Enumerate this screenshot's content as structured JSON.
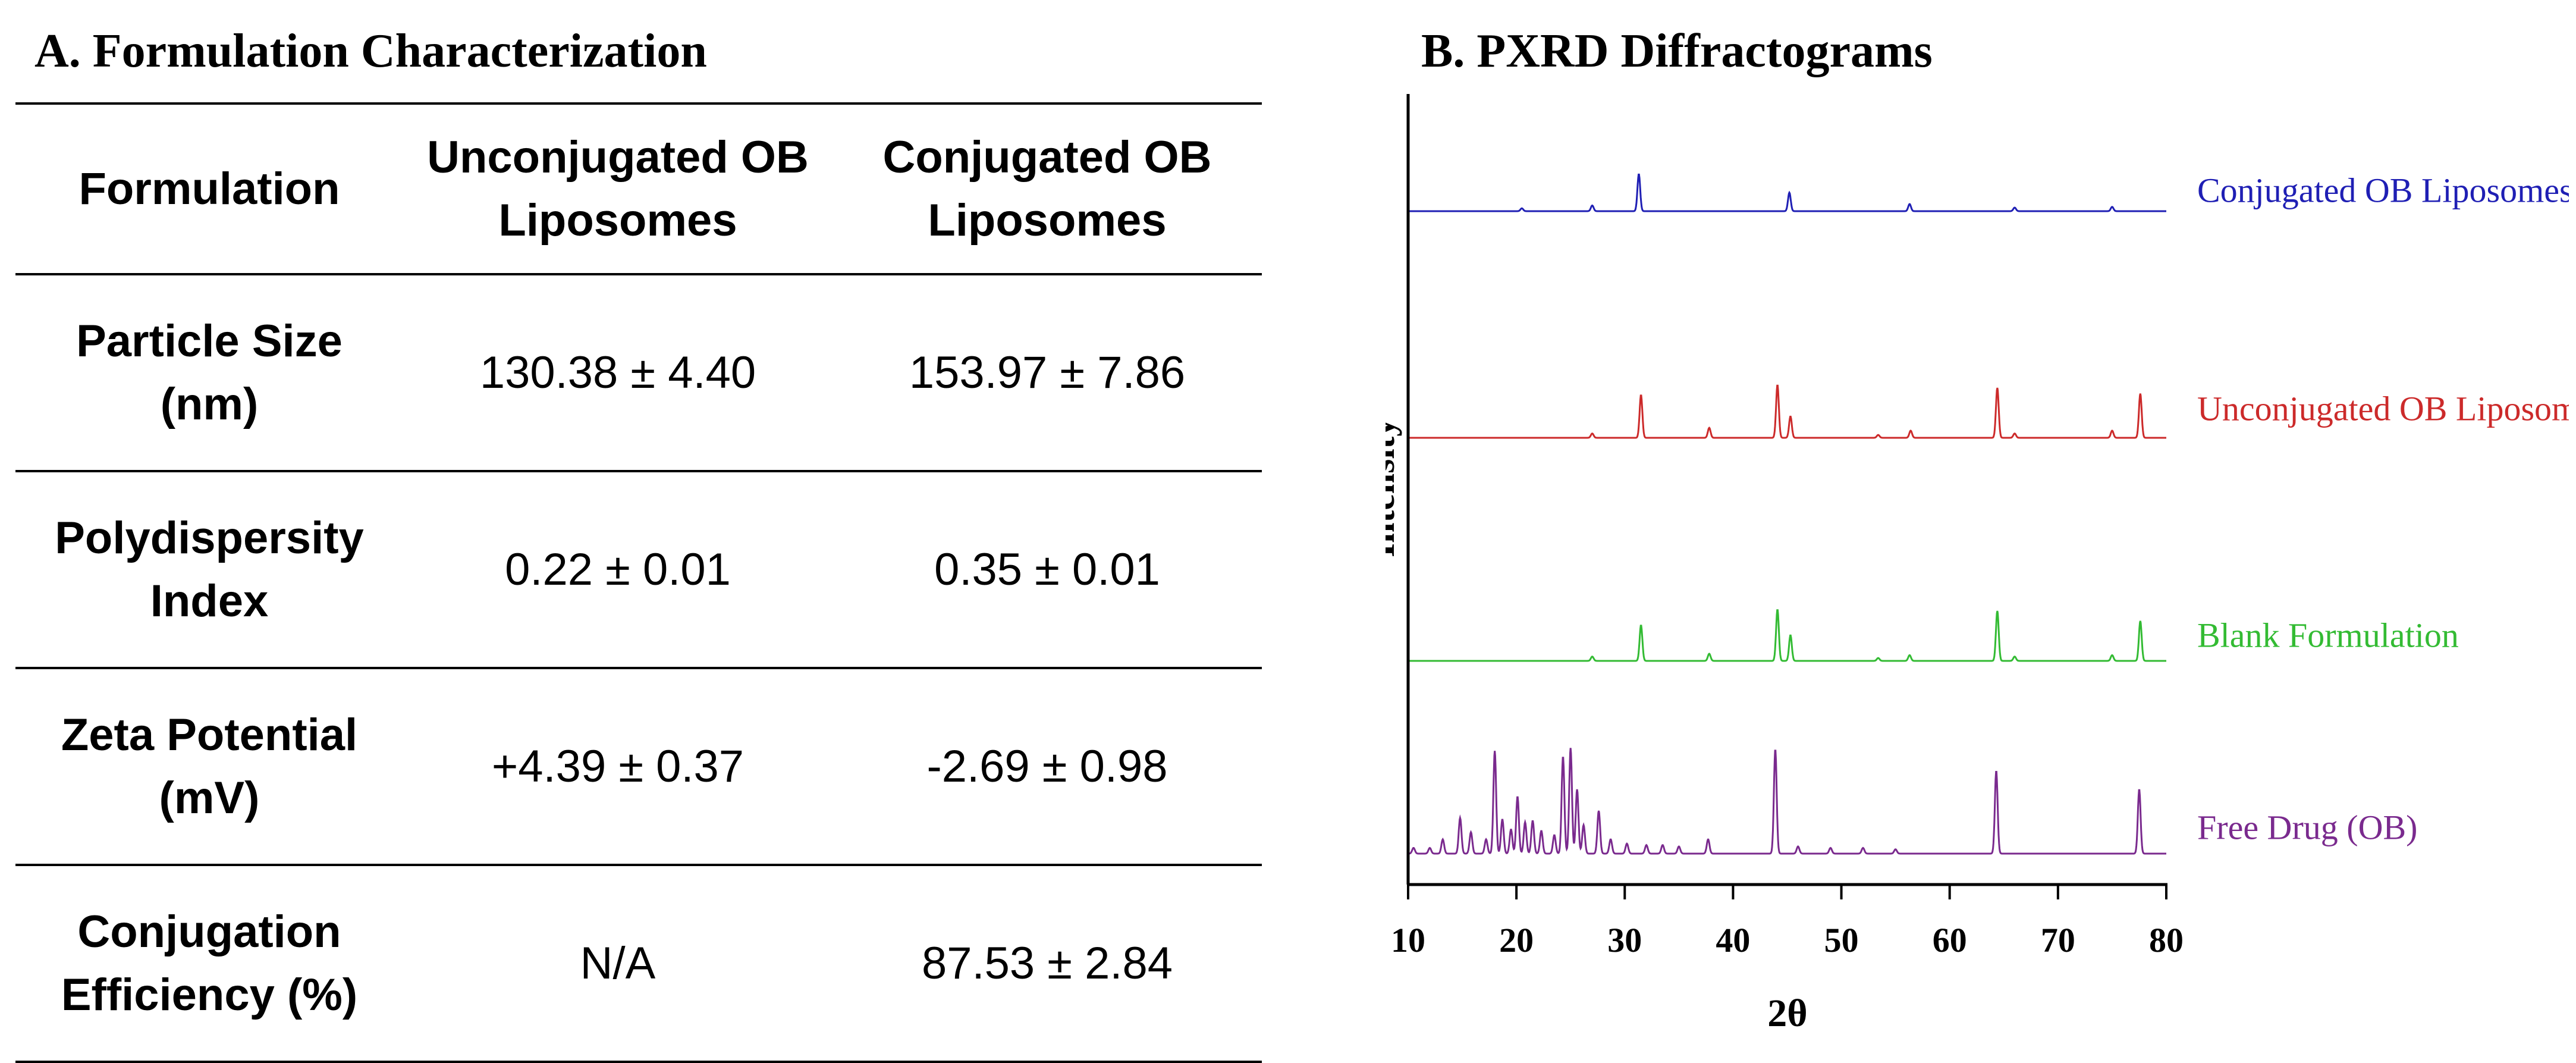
{
  "panel_a": {
    "title": "A. Formulation Characterization",
    "table": {
      "headers": [
        "Formulation",
        "Unconjugated OB Liposomes",
        "Conjugated OB Liposomes"
      ],
      "rows": [
        {
          "label": "Particle Size (nm)",
          "cells": [
            "130.38 ± 4.40",
            "153.97 ± 7.86"
          ]
        },
        {
          "label": "Polydispersity Index",
          "cells": [
            "0.22 ± 0.01",
            "0.35 ± 0.01"
          ]
        },
        {
          "label": "Zeta Potential (mV)",
          "cells": [
            "+4.39 ± 0.37",
            "-2.69 ± 0.98"
          ]
        },
        {
          "label": "Conjugation Efficiency (%)",
          "cells": [
            "N/A",
            "87.53 ± 2.84"
          ]
        }
      ]
    }
  },
  "panel_b": {
    "title": "B. PXRD Diffractograms"
  },
  "chart_data": {
    "type": "line",
    "xlabel": "2θ",
    "ylabel": "Intensity",
    "xlim": [
      10,
      80
    ],
    "xticks": [
      10,
      20,
      30,
      40,
      50,
      60,
      70,
      80
    ],
    "y_tick_labels": false,
    "stacked_offset": true,
    "label_placement": "right of each trace",
    "series": [
      {
        "name": "Conjugated OB Liposomes",
        "color": "#1f1fb4",
        "baseline": 0,
        "peaks": [
          [
            20.5,
            2
          ],
          [
            27,
            4
          ],
          [
            31.3,
            26
          ],
          [
            45.2,
            13
          ],
          [
            56.3,
            5
          ],
          [
            66,
            2.5
          ],
          [
            75,
            3
          ]
        ]
      },
      {
        "name": "Unconjugated OB Liposomes",
        "color": "#cc2a2a",
        "baseline": 0,
        "peaks": [
          [
            27,
            3
          ],
          [
            31.5,
            30
          ],
          [
            37.8,
            7
          ],
          [
            44.1,
            37
          ],
          [
            45.3,
            15
          ],
          [
            53.4,
            2
          ],
          [
            56.4,
            5
          ],
          [
            64.4,
            35
          ],
          [
            66,
            3
          ],
          [
            75,
            5
          ],
          [
            77.6,
            31
          ]
        ]
      },
      {
        "name": "Blank Formulation",
        "color": "#33bb33",
        "baseline": 0,
        "peaks": [
          [
            27,
            3
          ],
          [
            31.5,
            25
          ],
          [
            37.8,
            5
          ],
          [
            44.1,
            36
          ],
          [
            45.3,
            18
          ],
          [
            53.4,
            2
          ],
          [
            56.3,
            4
          ],
          [
            64.4,
            35
          ],
          [
            66,
            3
          ],
          [
            75,
            4
          ],
          [
            77.6,
            28
          ]
        ]
      },
      {
        "name": "Free Drug (OB)",
        "color": "#7a2a8e",
        "baseline": 0,
        "peaks": [
          [
            10.5,
            4
          ],
          [
            12,
            4
          ],
          [
            13.2,
            10
          ],
          [
            14.8,
            25
          ],
          [
            15.8,
            15
          ],
          [
            17.2,
            10
          ],
          [
            18,
            72
          ],
          [
            18.7,
            24
          ],
          [
            19.5,
            17
          ],
          [
            20.1,
            40
          ],
          [
            20.8,
            22
          ],
          [
            21.5,
            23
          ],
          [
            22.3,
            16
          ],
          [
            23.5,
            13
          ],
          [
            24.3,
            68
          ],
          [
            25,
            74
          ],
          [
            25.6,
            45
          ],
          [
            26.2,
            20
          ],
          [
            27.6,
            30
          ],
          [
            28.7,
            10
          ],
          [
            30.2,
            7
          ],
          [
            32,
            6
          ],
          [
            33.5,
            6
          ],
          [
            35,
            5
          ],
          [
            37.7,
            10
          ],
          [
            43.9,
            73
          ],
          [
            46,
            5
          ],
          [
            49,
            4
          ],
          [
            52,
            4
          ],
          [
            55,
            3
          ],
          [
            64.3,
            58
          ],
          [
            77.5,
            45
          ]
        ]
      }
    ]
  }
}
